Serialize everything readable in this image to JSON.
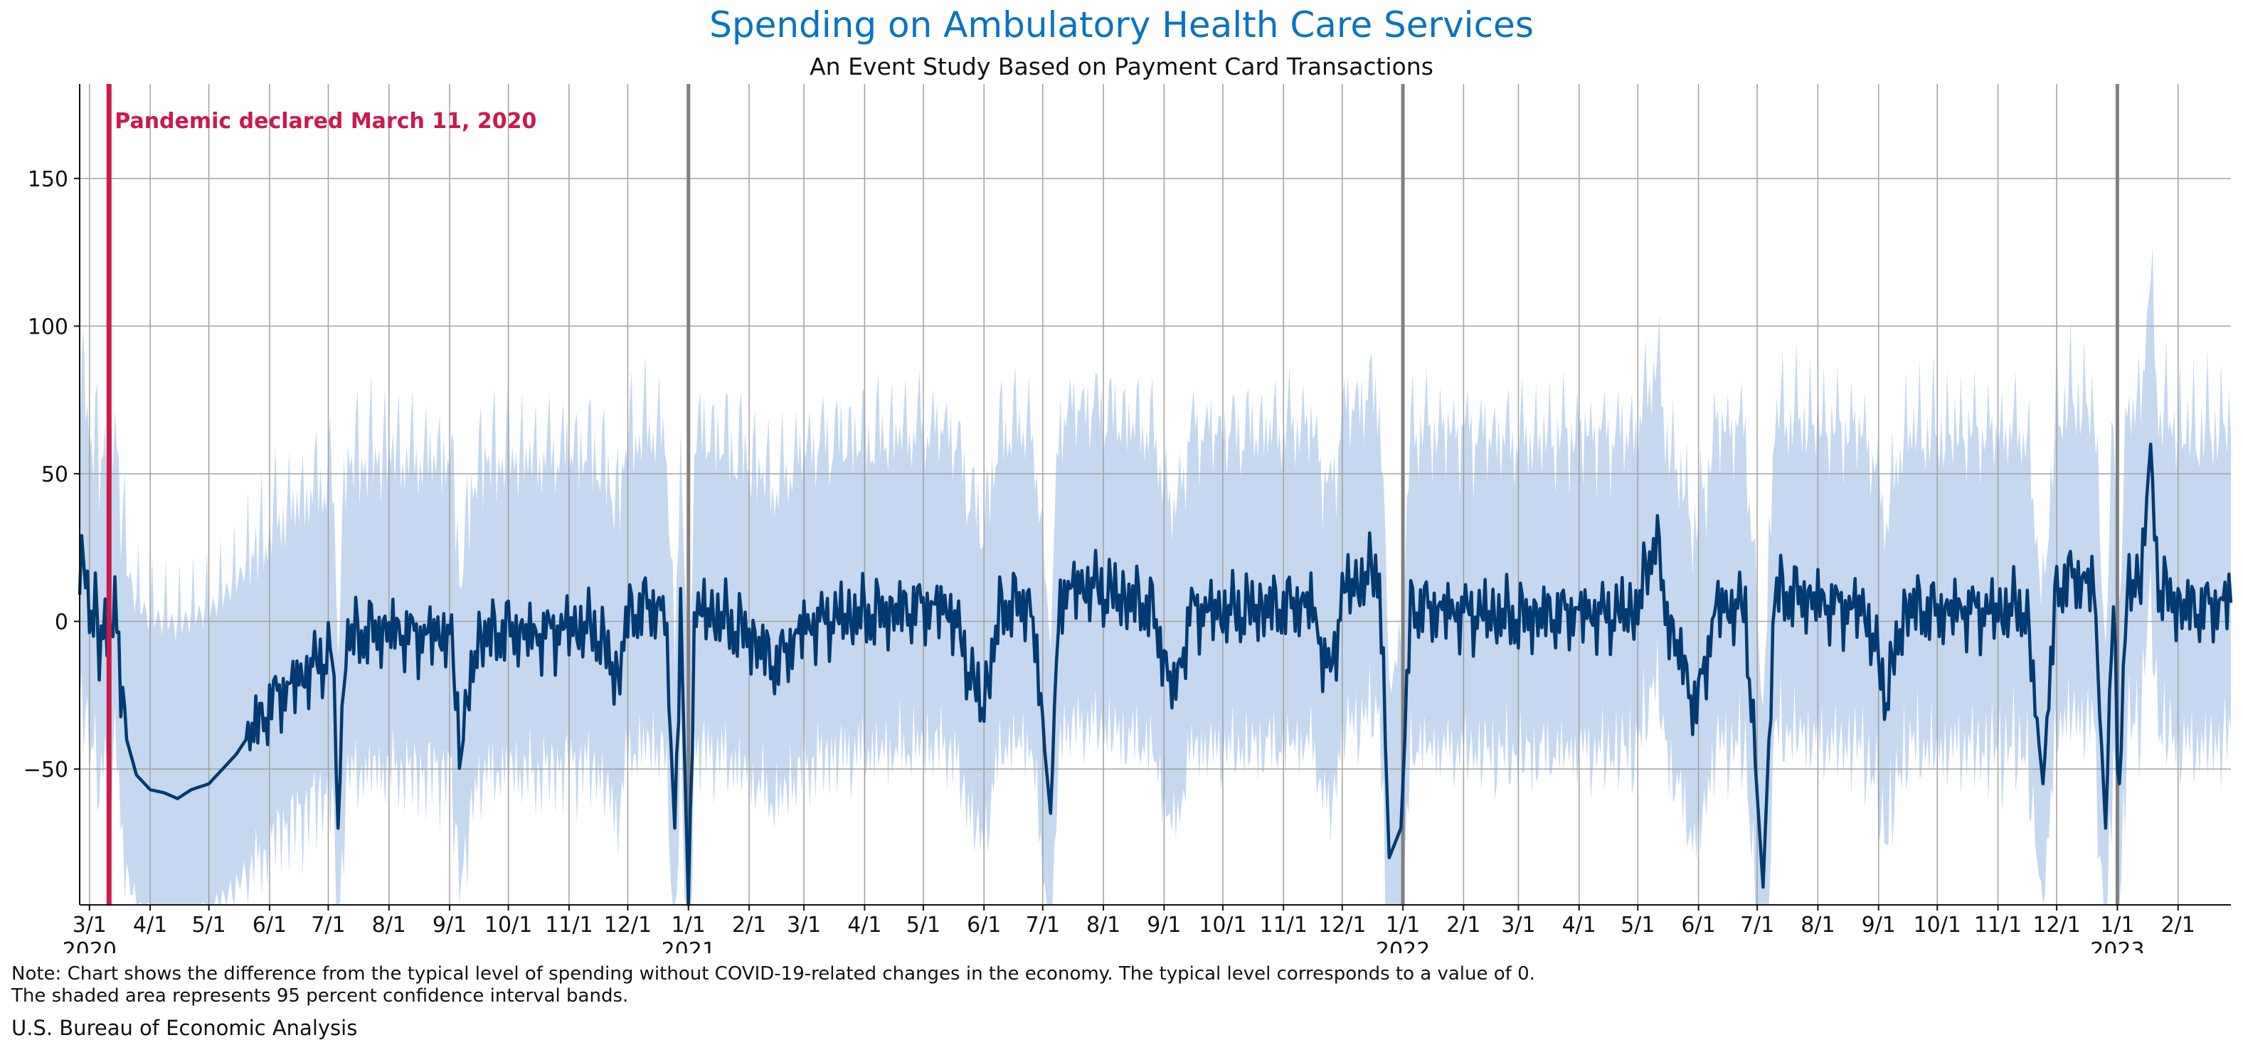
{
  "title": "Spending on Ambulatory Health Care Services",
  "subtitle": "An Event Study Based on Payment Card Transactions",
  "note_line1": "Note: Chart shows the difference from the typical level of spending without COVID-19-related changes in the economy. The typical level corresponds to a value of 0.",
  "note_line2": "The shaded area represents 95 percent confidence interval bands.",
  "source": "U.S. Bureau of Economic Analysis",
  "colors": {
    "title": "#0a72c2",
    "line": "#003a70",
    "band": "#c5d8ef",
    "annotation": "#cc1a4a",
    "year_divider": "#808080",
    "grid": "#a0a0a0"
  },
  "chart_data": {
    "type": "line",
    "x_axis": {
      "type": "date",
      "range": [
        "2020-02-25",
        "2023-02-28"
      ],
      "tick_labels": [
        {
          "date": "2020-03-01",
          "label": "3/1",
          "year": "2020"
        },
        {
          "date": "2020-04-01",
          "label": "4/1"
        },
        {
          "date": "2020-05-01",
          "label": "5/1"
        },
        {
          "date": "2020-06-01",
          "label": "6/1"
        },
        {
          "date": "2020-07-01",
          "label": "7/1"
        },
        {
          "date": "2020-08-01",
          "label": "8/1"
        },
        {
          "date": "2020-09-01",
          "label": "9/1"
        },
        {
          "date": "2020-10-01",
          "label": "10/1"
        },
        {
          "date": "2020-11-01",
          "label": "11/1"
        },
        {
          "date": "2020-12-01",
          "label": "12/1"
        },
        {
          "date": "2021-01-01",
          "label": "1/1",
          "year": "2021"
        },
        {
          "date": "2021-02-01",
          "label": "2/1"
        },
        {
          "date": "2021-03-01",
          "label": "3/1"
        },
        {
          "date": "2021-04-01",
          "label": "4/1"
        },
        {
          "date": "2021-05-01",
          "label": "5/1"
        },
        {
          "date": "2021-06-01",
          "label": "6/1"
        },
        {
          "date": "2021-07-01",
          "label": "7/1"
        },
        {
          "date": "2021-08-01",
          "label": "8/1"
        },
        {
          "date": "2021-09-01",
          "label": "9/1"
        },
        {
          "date": "2021-10-01",
          "label": "10/1"
        },
        {
          "date": "2021-11-01",
          "label": "11/1"
        },
        {
          "date": "2021-12-01",
          "label": "12/1"
        },
        {
          "date": "2022-01-01",
          "label": "1/1",
          "year": "2022"
        },
        {
          "date": "2022-02-01",
          "label": "2/1"
        },
        {
          "date": "2022-03-01",
          "label": "3/1"
        },
        {
          "date": "2022-04-01",
          "label": "4/1"
        },
        {
          "date": "2022-05-01",
          "label": "5/1"
        },
        {
          "date": "2022-06-01",
          "label": "6/1"
        },
        {
          "date": "2022-07-01",
          "label": "7/1"
        },
        {
          "date": "2022-08-01",
          "label": "8/1"
        },
        {
          "date": "2022-09-01",
          "label": "9/1"
        },
        {
          "date": "2022-10-01",
          "label": "10/1"
        },
        {
          "date": "2022-11-01",
          "label": "11/1"
        },
        {
          "date": "2022-12-01",
          "label": "12/1"
        },
        {
          "date": "2023-01-01",
          "label": "1/1",
          "year": "2023"
        },
        {
          "date": "2023-02-01",
          "label": "2/1"
        }
      ],
      "year_dividers": [
        "2021-01-01",
        "2022-01-01",
        "2023-01-01"
      ]
    },
    "y_axis": {
      "range": [
        -96,
        182
      ],
      "ticks": [
        -50,
        0,
        50,
        100,
        150
      ],
      "tick_labels": [
        "−50",
        "0",
        "50",
        "100",
        "150"
      ]
    },
    "grid": true,
    "annotation": {
      "date": "2020-03-11",
      "text": "Pandemic declared March 11, 2020"
    },
    "series": [
      {
        "band": "95 percent confidence interval",
        "points": [
          [
            "2020-02-25",
            12
          ],
          [
            "2020-02-28",
            20
          ],
          [
            "2020-03-01",
            5
          ],
          [
            "2020-03-04",
            4
          ],
          [
            "2020-03-06",
            -15
          ],
          [
            "2020-03-09",
            5
          ],
          [
            "2020-03-12",
            -8
          ],
          [
            "2020-03-14",
            12
          ],
          [
            "2020-03-17",
            -25
          ],
          [
            "2020-03-20",
            -40
          ],
          [
            "2020-03-25",
            -52
          ],
          [
            "2020-04-01",
            -57
          ],
          [
            "2020-04-08",
            -58
          ],
          [
            "2020-04-15",
            -60
          ],
          [
            "2020-04-22",
            -57
          ],
          [
            "2020-05-01",
            -55
          ],
          [
            "2020-05-08",
            -50
          ],
          [
            "2020-05-15",
            -45
          ],
          [
            "2020-05-22",
            -38
          ],
          [
            "2020-05-29",
            -32
          ],
          [
            "2020-06-05",
            -25
          ],
          [
            "2020-06-12",
            -22
          ],
          [
            "2020-06-19",
            -18
          ],
          [
            "2020-06-26",
            -14
          ],
          [
            "2020-07-03",
            -10
          ],
          [
            "2020-07-06",
            -70
          ],
          [
            "2020-07-10",
            -6
          ],
          [
            "2020-07-20",
            -4
          ],
          [
            "2020-08-01",
            -3
          ],
          [
            "2020-08-15",
            -5
          ],
          [
            "2020-09-01",
            -4
          ],
          [
            "2020-09-07",
            -45
          ],
          [
            "2020-09-15",
            -6
          ],
          [
            "2020-10-01",
            -3
          ],
          [
            "2020-10-15",
            -5
          ],
          [
            "2020-11-01",
            -2
          ],
          [
            "2020-11-15",
            -3
          ],
          [
            "2020-11-26",
            -20
          ],
          [
            "2020-12-01",
            2
          ],
          [
            "2020-12-10",
            5
          ],
          [
            "2020-12-20",
            4
          ],
          [
            "2020-12-25",
            -70
          ],
          [
            "2020-12-28",
            5
          ],
          [
            "2021-01-01",
            -96
          ],
          [
            "2021-01-04",
            3
          ],
          [
            "2021-01-15",
            2
          ],
          [
            "2021-02-01",
            -5
          ],
          [
            "2021-02-15",
            -15
          ],
          [
            "2021-02-20",
            -10
          ],
          [
            "2021-03-01",
            -2
          ],
          [
            "2021-03-15",
            1
          ],
          [
            "2021-04-01",
            2
          ],
          [
            "2021-04-15",
            3
          ],
          [
            "2021-05-01",
            5
          ],
          [
            "2021-05-15",
            4
          ],
          [
            "2021-05-31",
            -30
          ],
          [
            "2021-06-10",
            5
          ],
          [
            "2021-06-25",
            6
          ],
          [
            "2021-07-05",
            -65
          ],
          [
            "2021-07-10",
            10
          ],
          [
            "2021-07-25",
            12
          ],
          [
            "2021-08-10",
            8
          ],
          [
            "2021-08-25",
            5
          ],
          [
            "2021-09-06",
            -25
          ],
          [
            "2021-09-15",
            4
          ],
          [
            "2021-10-01",
            3
          ],
          [
            "2021-10-15",
            4
          ],
          [
            "2021-11-01",
            5
          ],
          [
            "2021-11-15",
            6
          ],
          [
            "2021-11-25",
            -20
          ],
          [
            "2021-12-01",
            10
          ],
          [
            "2021-12-12",
            14
          ],
          [
            "2021-12-20",
            18
          ],
          [
            "2021-12-25",
            -80
          ],
          [
            "2021-12-31",
            -70
          ],
          [
            "2022-01-05",
            5
          ],
          [
            "2022-01-15",
            4
          ],
          [
            "2022-02-01",
            3
          ],
          [
            "2022-02-15",
            2
          ],
          [
            "2022-03-01",
            1
          ],
          [
            "2022-03-15",
            2
          ],
          [
            "2022-04-01",
            3
          ],
          [
            "2022-04-15",
            2
          ],
          [
            "2022-05-01",
            4
          ],
          [
            "2022-05-10",
            30
          ],
          [
            "2022-05-15",
            4
          ],
          [
            "2022-05-31",
            -30
          ],
          [
            "2022-06-10",
            5
          ],
          [
            "2022-06-25",
            4
          ],
          [
            "2022-07-04",
            -90
          ],
          [
            "2022-07-10",
            10
          ],
          [
            "2022-07-25",
            8
          ],
          [
            "2022-08-10",
            5
          ],
          [
            "2022-08-25",
            4
          ],
          [
            "2022-09-05",
            -25
          ],
          [
            "2022-09-15",
            5
          ],
          [
            "2022-10-01",
            3
          ],
          [
            "2022-10-15",
            4
          ],
          [
            "2022-11-01",
            3
          ],
          [
            "2022-11-15",
            5
          ],
          [
            "2022-11-24",
            -55
          ],
          [
            "2022-12-01",
            12
          ],
          [
            "2022-12-10",
            15
          ],
          [
            "2022-12-20",
            12
          ],
          [
            "2022-12-26",
            -70
          ],
          [
            "2022-12-30",
            5
          ],
          [
            "2023-01-02",
            -55
          ],
          [
            "2023-01-06",
            10
          ],
          [
            "2023-01-13",
            15
          ],
          [
            "2023-01-18",
            60
          ],
          [
            "2023-01-22",
            12
          ],
          [
            "2023-02-01",
            5
          ],
          [
            "2023-02-10",
            4
          ],
          [
            "2023-02-20",
            5
          ],
          [
            "2023-02-28",
            8
          ]
        ]
      }
    ]
  }
}
